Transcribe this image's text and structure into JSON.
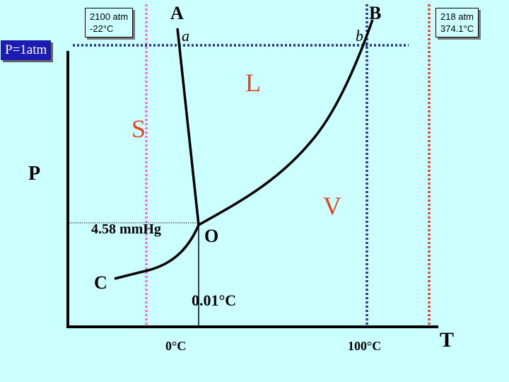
{
  "diagram": {
    "phase_solid": "S",
    "phase_liquid": "L",
    "phase_vapor": "V",
    "axis_p": "P",
    "axis_t": "T",
    "point_a_upper": "A",
    "point_a_lower": "a",
    "point_b_upper": "B",
    "point_b_lower": "b",
    "point_o": "O",
    "point_c": "C",
    "triple_pressure": "4.58 mmHg",
    "triple_temp": "0.01°C",
    "tick_0c": "0°C",
    "tick_100c": "100°C",
    "pressure_line": "P=1atm",
    "box_a": {
      "line1": "2100 atm",
      "line2": "-22°C"
    },
    "box_b": {
      "line1": "218 atm",
      "line2": "374.1°C"
    }
  },
  "colors": {
    "background": "#ccffff",
    "phase_label": "#e8401c",
    "pink_line": "#ee6fdc",
    "blue_line": "#2b2ba0",
    "red_line": "#e83a2a",
    "label_box": "#1c1cb4"
  }
}
